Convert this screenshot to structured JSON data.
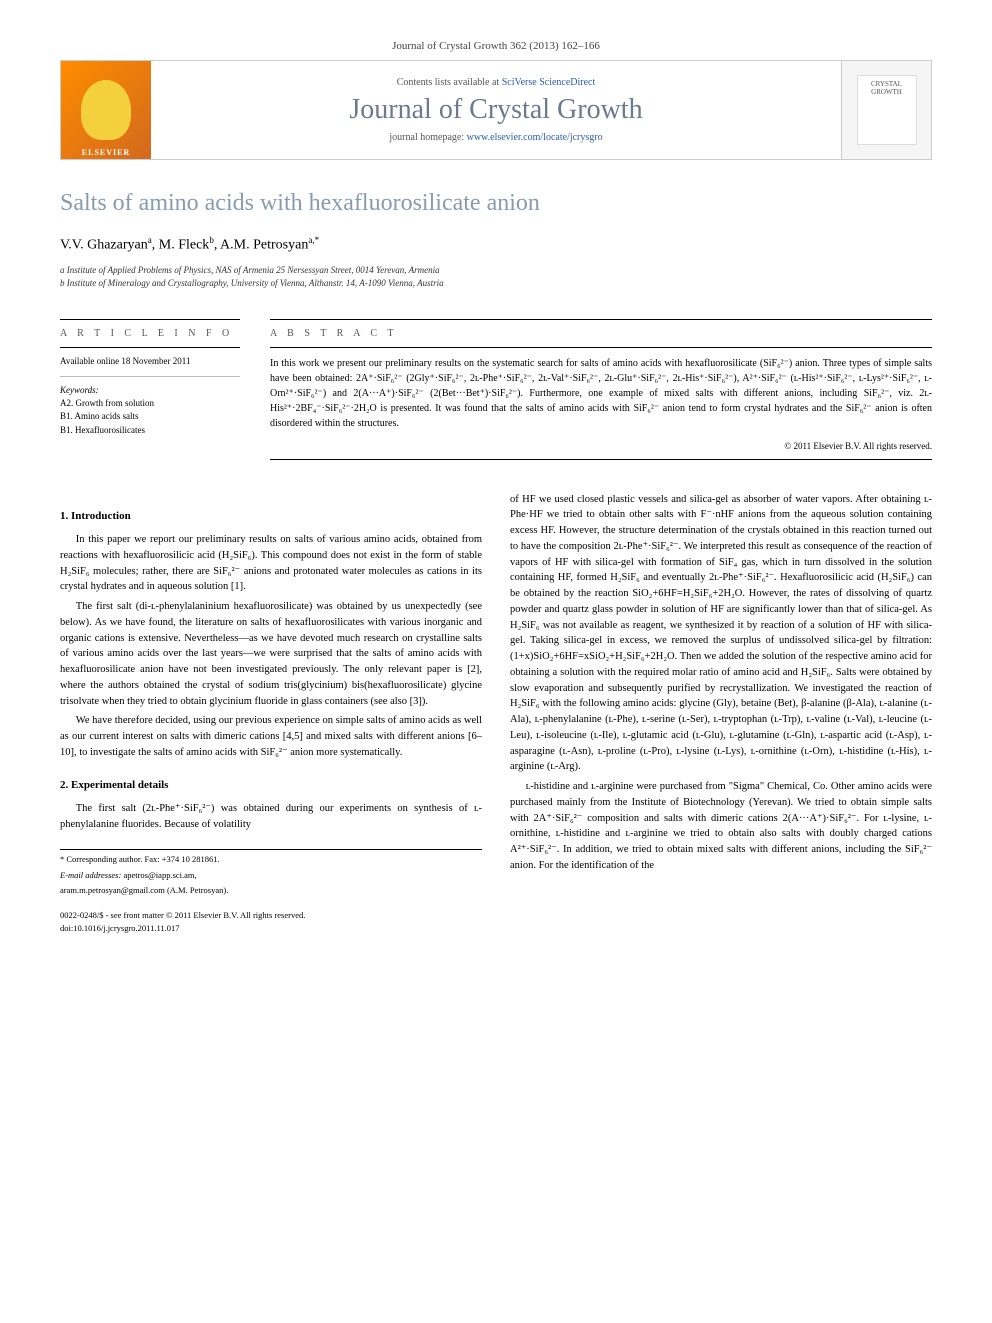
{
  "journal_ref": "Journal of Crystal Growth 362 (2013) 162–166",
  "banner": {
    "contents_prefix": "Contents lists available at ",
    "contents_link": "SciVerse ScienceDirect",
    "journal_title": "Journal of Crystal Growth",
    "homepage_prefix": "journal homepage: ",
    "homepage_link": "www.elsevier.com/locate/jcrysgro",
    "publisher": "ELSEVIER",
    "cover_label": "CRYSTAL GROWTH"
  },
  "article": {
    "title": "Salts of amino acids with hexafluorosilicate anion",
    "authors_html": "V.V. Ghazaryan",
    "author1": "V.V. Ghazaryan",
    "author1_aff": "a",
    "author2": "M. Fleck",
    "author2_aff": "b",
    "author3": "A.M. Petrosyan",
    "author3_aff": "a,",
    "corr_mark": "*",
    "aff_a": "a Institute of Applied Problems of Physics, NAS of Armenia 25 Nersessyan Street, 0014 Yerevan, Armenia",
    "aff_b": "b Institute of Mineralogy and Crystallography, University of Vienna, Althanstr. 14, A-1090 Vienna, Austria"
  },
  "info": {
    "heading": "A R T I C L E  I N F O",
    "online": "Available online 18 November 2011",
    "keywords_label": "Keywords:",
    "k1": "A2. Growth from solution",
    "k2": "B1. Amino acids salts",
    "k3": "B1. Hexafluorosilicates"
  },
  "abstract": {
    "heading": "A B S T R A C T",
    "text": "In this work we present our preliminary results on the systematic search for salts of amino acids with hexafluorosilicate (SiF₆²⁻) anion. Three types of simple salts have been obtained: 2A⁺·SiF₆²⁻ (2Gly⁺·SiF₆²⁻, 2ʟ-Phe⁺·SiF₆²⁻, 2ʟ-Val⁺·SiF₆²⁻, 2ʟ-Glu⁺·SiF₆²⁻, 2ʟ-His⁺·SiF₆²⁻), A²⁺·SiF₆²⁻ (ʟ-His²⁺·SiF₆²⁻, ʟ-Lys²⁺·SiF₆²⁻, ʟ-Orn²⁺·SiF₆²⁻) and 2(A···A⁺)·SiF₆²⁻ (2(Bet···Bet⁺)·SiF₆²⁻). Furthermore, one example of mixed salts with different anions, including SiF₆²⁻, viz. 2ʟ-His²⁺·2BF₄⁻·SiF₆²⁻·2H₂O is presented. It was found that the salts of amino acids with SiF₆²⁻ anion tend to form crystal hydrates and the SiF₆²⁻ anion is often disordered within the structures.",
    "copyright": "© 2011 Elsevier B.V. All rights reserved."
  },
  "sections": {
    "s1_heading": "1. Introduction",
    "s1_p1": "In this paper we report our preliminary results on salts of various amino acids, obtained from reactions with hexafluorosilicic acid (H₂SiF₆). This compound does not exist in the form of stable H₂SiF₆ molecules; rather, there are SiF₆²⁻ anions and protonated water molecules as cations in its crystal hydrates and in aqueous solution [1].",
    "s1_p2": "The first salt (di-ʟ-phenylalaninium hexafluorosilicate) was obtained by us unexpectedly (see below). As we have found, the literature on salts of hexafluorosilicates with various inorganic and organic cations is extensive. Nevertheless—as we have devoted much research on crystalline salts of various amino acids over the last years—we were surprised that the salts of amino acids with hexafluorosilicate anion have not been investigated previously. The only relevant paper is [2], where the authors obtained the crystal of sodium tris(glycinium) bis(hexafluorosilicate) glycine trisolvate when they tried to obtain glycinium fluoride in glass containers (see also [3]).",
    "s1_p3": "We have therefore decided, using our previous experience on simple salts of amino acids as well as our current interest on salts with dimeric cations [4,5] and mixed salts with different anions [6–10], to investigate the salts of amino acids with SiF₆²⁻ anion more systematically.",
    "s2_heading": "2. Experimental details",
    "s2_p1": "The first salt (2ʟ-Phe⁺·SiF₆²⁻) was obtained during our experiments on synthesis of ʟ-phenylalanine fluorides. Because of volatility",
    "s2_p2": "of HF we used closed plastic vessels and silica-gel as absorber of water vapors. After obtaining ʟ-Phe·HF we tried to obtain other salts with F⁻·nHF anions from the aqueous solution containing excess HF. However, the structure determination of the crystals obtained in this reaction turned out to have the composition 2ʟ-Phe⁺·SiF₆²⁻. We interpreted this result as consequence of the reaction of vapors of HF with silica-gel with formation of SiF₄ gas, which in turn dissolved in the solution containing HF, formed H₂SiF₆ and eventually 2ʟ-Phe⁺·SiF₆²⁻. Hexafluorosilicic acid (H₂SiF₆) can be obtained by the reaction SiO₂+6HF=H₂SiF₆+2H₂O. However, the rates of dissolving of quartz powder and quartz glass powder in solution of HF are significantly lower than that of silica-gel. As H₂SiF₆ was not available as reagent, we synthesized it by reaction of a solution of HF with silica-gel. Taking silica-gel in excess, we removed the surplus of undissolved silica-gel by filtration: (1+x)SiO₂+6HF=xSiO₂+H₂SiF₆+2H₂O. Then we added the solution of the respective amino acid for obtaining a solution with the required molar ratio of amino acid and H₂SiF₆. Salts were obtained by slow evaporation and subsequently purified by recrystallization. We investigated the reaction of H₂SiF₆ with the following amino acids: glycine (Gly), betaine (Bet), β-alanine (β-Ala), ʟ-alanine (ʟ-Ala), ʟ-phenylalanine (ʟ-Phe), ʟ-serine (ʟ-Ser), ʟ-tryptophan (ʟ-Trp), ʟ-valine (ʟ-Val), ʟ-leucine (ʟ-Leu), ʟ-isoleucine (ʟ-Ile), ʟ-glutamic acid (ʟ-Glu), ʟ-glutamine (ʟ-Gln), ʟ-aspartic acid (ʟ-Asp), ʟ-asparagine (ʟ-Asn), ʟ-proline (ʟ-Pro), ʟ-lysine (ʟ-Lys), ʟ-ornithine (ʟ-Orn), ʟ-histidine (ʟ-His), ʟ-arginine (ʟ-Arg).",
    "s2_p3": "ʟ-histidine and ʟ-arginine were purchased from \"Sigma\" Chemical, Co. Other amino acids were purchased mainly from the Institute of Biotechnology (Yerevan). We tried to obtain simple salts with 2A⁺·SiF₆²⁻ composition and salts with dimeric cations 2(A···A⁺)·SiF₆²⁻. For ʟ-lysine, ʟ-ornithine, ʟ-histidine and ʟ-arginine we tried to obtain also salts with doubly charged cations A²⁺·SiF₆²⁻. In addition, we tried to obtain mixed salts with different anions, including the SiF₆²⁻ anion. For the identification of the"
  },
  "footnotes": {
    "corr": "* Corresponding author. Fax: +374 10 281861.",
    "email_label": "E-mail addresses:",
    "email1": "apetros@iapp.sci.am,",
    "email2": "aram.m.petrosyan@gmail.com (A.M. Petrosyan)."
  },
  "footer": {
    "issn": "0022-0248/$ - see front matter © 2011 Elsevier B.V. All rights reserved.",
    "doi": "doi:10.1016/j.jcrysgro.2011.11.017"
  }
}
